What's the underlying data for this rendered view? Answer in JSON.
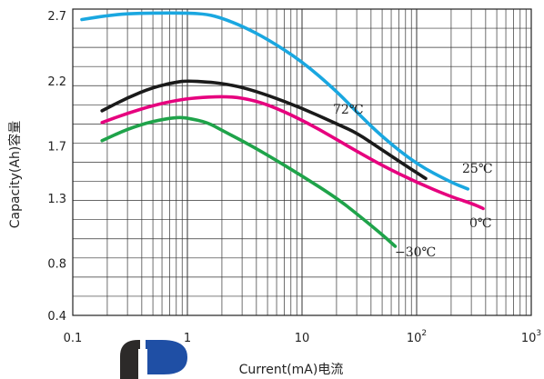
{
  "chart_data": {
    "type": "line",
    "xlabel": "Current(mA)电流",
    "ylabel": "Capacity(Ah)容量",
    "xscale": "log",
    "xlim": [
      0.1,
      1000
    ],
    "ylim": [
      0.4,
      2.75
    ],
    "x_ticks": [
      {
        "value": 0.1,
        "label": "0.1"
      },
      {
        "value": 1,
        "label": "1"
      },
      {
        "value": 10,
        "label": "10"
      },
      {
        "value": 100,
        "label": "10",
        "sup": "2"
      },
      {
        "value": 1000,
        "label": "10",
        "sup": "3"
      }
    ],
    "y_ticks": [
      {
        "value": 0.4,
        "label": "0.4"
      },
      {
        "value": 0.8,
        "label": "0.8"
      },
      {
        "value": 1.3,
        "label": "1.3"
      },
      {
        "value": 1.7,
        "label": "1.7"
      },
      {
        "value": 2.2,
        "label": "2.2"
      },
      {
        "value": 2.7,
        "label": "2.7"
      }
    ],
    "grid": true,
    "series": [
      {
        "name": "25℃",
        "color": "#1aa7e0",
        "points": [
          [
            0.12,
            2.67
          ],
          [
            0.2,
            2.7
          ],
          [
            0.3,
            2.715
          ],
          [
            0.5,
            2.72
          ],
          [
            1,
            2.72
          ],
          [
            1.5,
            2.71
          ],
          [
            2,
            2.68
          ],
          [
            3,
            2.62
          ],
          [
            5,
            2.52
          ],
          [
            10,
            2.35
          ],
          [
            20,
            2.12
          ],
          [
            30,
            1.96
          ],
          [
            50,
            1.77
          ],
          [
            100,
            1.56
          ],
          [
            200,
            1.42
          ],
          [
            280,
            1.37
          ]
        ]
      },
      {
        "name": "72℃",
        "color": "#1a1a1a",
        "points": [
          [
            0.18,
            1.97
          ],
          [
            0.3,
            2.07
          ],
          [
            0.5,
            2.15
          ],
          [
            0.8,
            2.19
          ],
          [
            1,
            2.2
          ],
          [
            1.5,
            2.19
          ],
          [
            2,
            2.18
          ],
          [
            3,
            2.15
          ],
          [
            5,
            2.09
          ],
          [
            10,
            1.99
          ],
          [
            20,
            1.87
          ],
          [
            30,
            1.8
          ],
          [
            50,
            1.67
          ],
          [
            80,
            1.55
          ],
          [
            120,
            1.45
          ]
        ]
      },
      {
        "name": "0℃",
        "color": "#e6007e",
        "points": [
          [
            0.18,
            1.88
          ],
          [
            0.3,
            1.95
          ],
          [
            0.5,
            2.01
          ],
          [
            0.8,
            2.05
          ],
          [
            1.2,
            2.07
          ],
          [
            2,
            2.08
          ],
          [
            3,
            2.07
          ],
          [
            5,
            2.02
          ],
          [
            10,
            1.9
          ],
          [
            20,
            1.75
          ],
          [
            30,
            1.66
          ],
          [
            50,
            1.55
          ],
          [
            100,
            1.42
          ],
          [
            200,
            1.31
          ],
          [
            300,
            1.26
          ],
          [
            380,
            1.22
          ]
        ]
      },
      {
        "name": "−30℃",
        "color": "#1fa34a",
        "points": [
          [
            0.18,
            1.74
          ],
          [
            0.3,
            1.83
          ],
          [
            0.5,
            1.89
          ],
          [
            0.8,
            1.92
          ],
          [
            1,
            1.915
          ],
          [
            1.5,
            1.88
          ],
          [
            2,
            1.82
          ],
          [
            3,
            1.74
          ],
          [
            5,
            1.63
          ],
          [
            10,
            1.47
          ],
          [
            20,
            1.3
          ],
          [
            30,
            1.18
          ],
          [
            50,
            1.02
          ],
          [
            65,
            0.93
          ]
        ]
      }
    ],
    "series_labels": [
      {
        "text": "72℃",
        "series": "72℃"
      },
      {
        "text": "25℃",
        "series": "25℃"
      },
      {
        "text": "0℃",
        "series": "0℃"
      },
      {
        "text": "−30℃",
        "series": "−30℃"
      }
    ]
  }
}
